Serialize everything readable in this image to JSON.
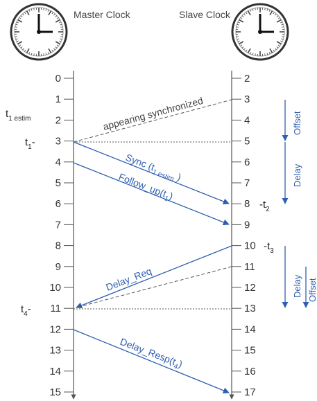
{
  "master_title": "Master Clock",
  "slave_title": "Slave Clock",
  "master_ticks": [
    "0",
    "1",
    "2",
    "3",
    "4",
    "5",
    "6",
    "7",
    "8",
    "9",
    "10",
    "11",
    "12",
    "13",
    "14",
    "15"
  ],
  "slave_ticks": [
    "2",
    "3",
    "4",
    "5",
    "6",
    "7",
    "8",
    "9",
    "10",
    "11",
    "12",
    "13",
    "14",
    "15",
    "16",
    "17"
  ],
  "left_labels": {
    "t1_estim": {
      "base": "t",
      "sub": "1 estim"
    },
    "t1": {
      "base": "t",
      "sub": "1",
      "suffix": "-"
    },
    "t4": {
      "base": "t",
      "sub": "4",
      "suffix": "-"
    }
  },
  "right_labels": {
    "t2": {
      "prefix": "-t",
      "sub": "2"
    },
    "t3": {
      "prefix": "-t",
      "sub": "3"
    }
  },
  "messages": {
    "appearing": "appearing synchronized",
    "sync": {
      "pre": "Sync (t",
      "sub": "1 estim",
      "post": "  )"
    },
    "follow_up": {
      "pre": "Follow_up(t",
      "sub": "1",
      "post": ")"
    },
    "delay_req": "Delay_Req",
    "delay_resp": {
      "pre": "Delay_Resp(t",
      "sub": "4",
      "post": ")"
    }
  },
  "side_labels": {
    "offset_top": "Offset",
    "delay_top": "Delay",
    "delay_bottom": "Delay",
    "offset_bottom": "Offset"
  },
  "colors": {
    "blue": "#2f5fb0",
    "axis": "#555555",
    "text": "#333333"
  }
}
